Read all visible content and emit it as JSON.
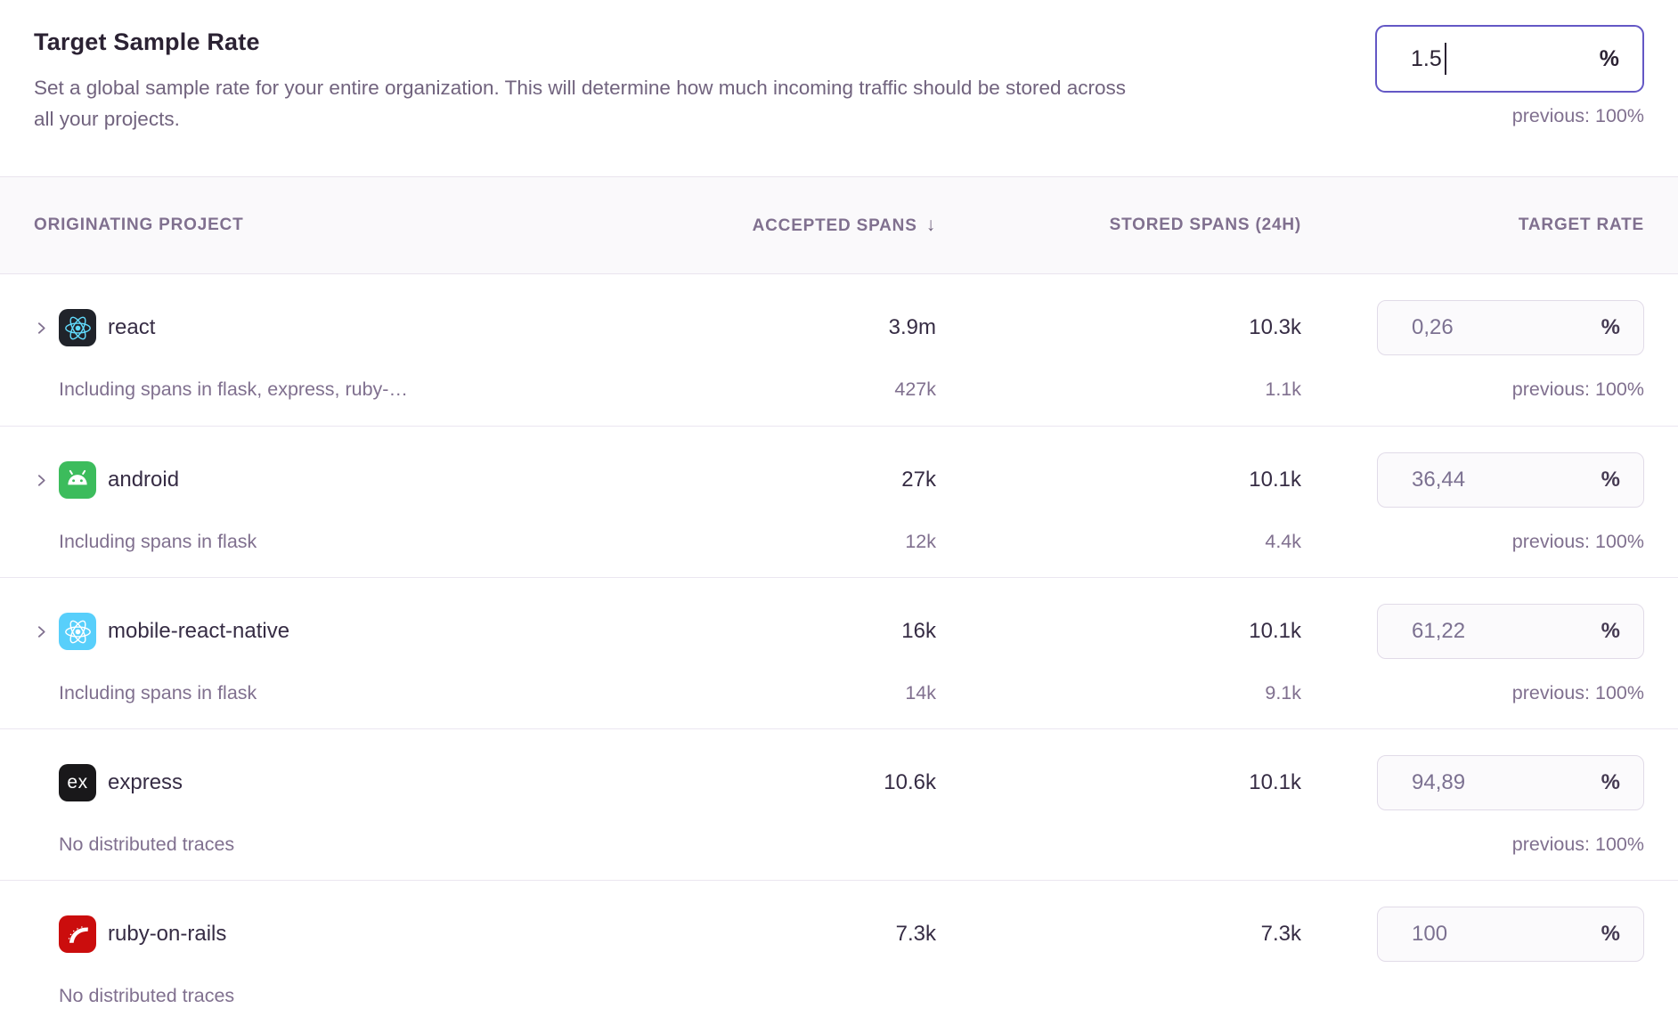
{
  "header": {
    "title": "Target Sample Rate",
    "description": "Set a global sample rate for your entire organization. This will determine how much incoming traffic should be stored across all your projects.",
    "rate_input": {
      "value": "1.5",
      "unit": "%",
      "previous": "previous: 100%"
    }
  },
  "table": {
    "headers": {
      "project": "ORIGINATING PROJECT",
      "accepted": "ACCEPTED SPANS",
      "sort_indicator": "↓",
      "stored": "STORED SPANS (24H)",
      "rate": "TARGET RATE"
    },
    "rows": [
      {
        "project": "react",
        "icon": "react",
        "expandable": true,
        "accepted": "3.9m",
        "stored": "10.3k",
        "rate": "0,26",
        "unit": "%",
        "sub_label": "Including spans in flask, express, ruby-…",
        "sub_accepted": "427k",
        "sub_stored": "1.1k",
        "previous": "previous: 100%"
      },
      {
        "project": "android",
        "icon": "android",
        "expandable": true,
        "accepted": "27k",
        "stored": "10.1k",
        "rate": "36,44",
        "unit": "%",
        "sub_label": "Including spans in flask",
        "sub_accepted": "12k",
        "sub_stored": "4.4k",
        "previous": "previous: 100%"
      },
      {
        "project": "mobile-react-native",
        "icon": "react-native",
        "expandable": true,
        "accepted": "16k",
        "stored": "10.1k",
        "rate": "61,22",
        "unit": "%",
        "sub_label": "Including spans in flask",
        "sub_accepted": "14k",
        "sub_stored": "9.1k",
        "previous": "previous: 100%"
      },
      {
        "project": "express",
        "icon": "express",
        "expandable": false,
        "accepted": "10.6k",
        "stored": "10.1k",
        "rate": "94,89",
        "unit": "%",
        "sub_label": "No distributed traces",
        "sub_accepted": "",
        "sub_stored": "",
        "previous": "previous: 100%"
      },
      {
        "project": "ruby-on-rails",
        "icon": "rails",
        "expandable": false,
        "accepted": "7.3k",
        "stored": "7.3k",
        "rate": "100",
        "unit": "%",
        "sub_label": "No distributed traces",
        "sub_accepted": "",
        "sub_stored": "",
        "previous": ""
      }
    ]
  },
  "icons": {
    "react": {
      "bg": "#20232a",
      "fg": "#61dafb"
    },
    "android": {
      "bg": "#3cbc5c",
      "fg": "#ffffff"
    },
    "react-native": {
      "bg": "#58cffb",
      "fg": "#ffffff"
    },
    "express": {
      "bg": "#19181a",
      "fg": "#ffffff",
      "text": "ex"
    },
    "rails": {
      "bg": "#cb0d0d",
      "fg": "#ffffff"
    }
  },
  "colors": {
    "accent_purple": "#6458c5",
    "text_dark": "#2b2233",
    "text_muted": "#80708f",
    "divider": "#ebe6f0",
    "header_band_bg": "#faf9fb",
    "input_bg": "#fbfafc",
    "input_border": "#e1dbe8"
  }
}
